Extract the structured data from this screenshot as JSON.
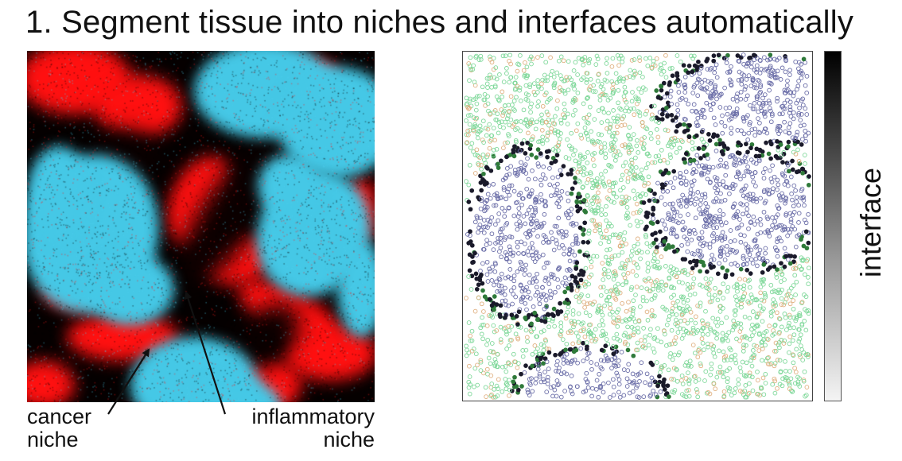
{
  "title": "1. Segment tissue into niches and interfaces automatically",
  "left_panel": {
    "name": "niche-segmentation-image",
    "colors": {
      "cancer": "#45c8e6",
      "inflammatory": "#ff1010",
      "background": "#050000"
    },
    "labels": {
      "cancer_line1": "cancer",
      "cancer_line2": "niche",
      "inflammatory_line1": "inflammatory",
      "inflammatory_line2": "niche"
    }
  },
  "right_panel": {
    "name": "interface-cell-scatter",
    "colors": {
      "cancer_cells": "#6b6ea8",
      "stroma_cells": "#7fd89a",
      "other_cells": "#e0b080",
      "interface_dark": "#1a1a2a",
      "interface_green": "#2f7a3a"
    }
  },
  "colorbar": {
    "label": "interface",
    "colors": {
      "high": "#000000",
      "low": "#f4f4f4"
    }
  }
}
